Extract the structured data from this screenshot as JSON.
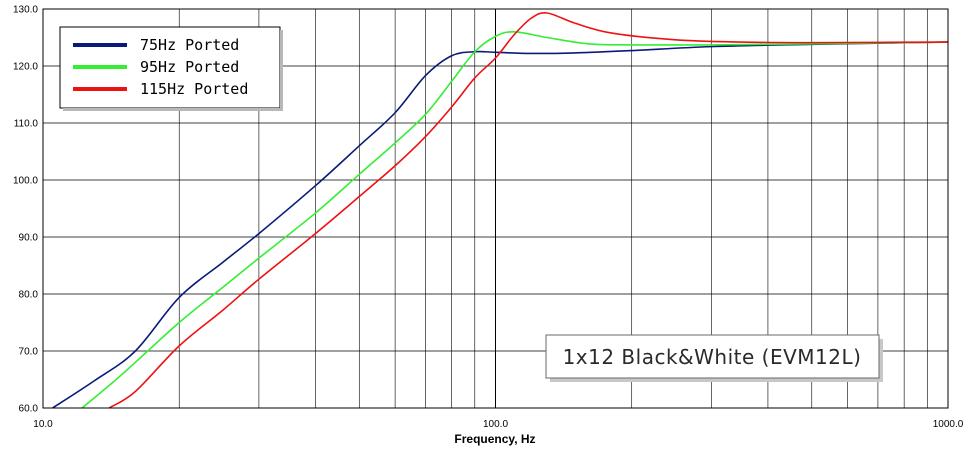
{
  "chart_data": {
    "type": "line",
    "xscale": "log",
    "xlim": [
      10.0,
      1000.0
    ],
    "ylim": [
      60.0,
      130.0
    ],
    "grid": true,
    "legend_position": "top-left",
    "xlabel": "Frequency, Hz",
    "ylabel": "",
    "x_ticks": [
      {
        "value": 10,
        "label": "10.0"
      },
      {
        "value": 100,
        "label": "100.0"
      },
      {
        "value": 1000,
        "label": "1000.0"
      }
    ],
    "y_ticks": [
      {
        "value": 60,
        "label": "60.0"
      },
      {
        "value": 70,
        "label": "70.0"
      },
      {
        "value": 80,
        "label": "80.0"
      },
      {
        "value": 90,
        "label": "90.0"
      },
      {
        "value": 100,
        "label": "100.0"
      },
      {
        "value": 110,
        "label": "110.0"
      },
      {
        "value": 120,
        "label": "120.0"
      },
      {
        "value": 130,
        "label": "130.0"
      }
    ],
    "annotation": "1x12 Black&White (EVM12L)",
    "series": [
      {
        "name": "75Hz Ported",
        "color": "#0a1a7a",
        "points": [
          [
            10.5,
            60.0
          ],
          [
            13,
            64.8
          ],
          [
            16,
            70.0
          ],
          [
            20,
            79.4
          ],
          [
            25,
            85.6
          ],
          [
            30,
            90.6
          ],
          [
            40,
            99.0
          ],
          [
            50,
            106.0
          ],
          [
            60,
            111.8
          ],
          [
            70,
            118.3
          ],
          [
            80,
            121.8
          ],
          [
            90,
            122.5
          ],
          [
            100,
            122.4
          ],
          [
            120,
            122.2
          ],
          [
            150,
            122.3
          ],
          [
            200,
            122.7
          ],
          [
            300,
            123.4
          ],
          [
            500,
            123.8
          ],
          [
            700,
            124.0
          ],
          [
            1000,
            124.2
          ]
        ]
      },
      {
        "name": "95Hz Ported",
        "color": "#33ee33",
        "points": [
          [
            12.2,
            60.0
          ],
          [
            15,
            66.0
          ],
          [
            20,
            75.0
          ],
          [
            25,
            81.2
          ],
          [
            30,
            86.3
          ],
          [
            40,
            94.2
          ],
          [
            50,
            101.0
          ],
          [
            60,
            106.5
          ],
          [
            70,
            111.5
          ],
          [
            80,
            117.3
          ],
          [
            90,
            122.5
          ],
          [
            100,
            125.2
          ],
          [
            110,
            126.0
          ],
          [
            130,
            125.0
          ],
          [
            160,
            123.9
          ],
          [
            200,
            123.7
          ],
          [
            300,
            123.7
          ],
          [
            500,
            123.9
          ],
          [
            1000,
            124.2
          ]
        ]
      },
      {
        "name": "115Hz Ported",
        "color": "#ee1111",
        "points": [
          [
            14,
            60.0
          ],
          [
            16,
            62.9
          ],
          [
            20,
            70.9
          ],
          [
            25,
            77.2
          ],
          [
            30,
            82.6
          ],
          [
            40,
            90.6
          ],
          [
            50,
            97.1
          ],
          [
            60,
            102.5
          ],
          [
            70,
            107.6
          ],
          [
            80,
            112.8
          ],
          [
            90,
            117.9
          ],
          [
            100,
            121.4
          ],
          [
            110,
            125.5
          ],
          [
            120,
            128.4
          ],
          [
            130,
            129.3
          ],
          [
            150,
            127.5
          ],
          [
            180,
            125.8
          ],
          [
            250,
            124.6
          ],
          [
            350,
            124.2
          ],
          [
            500,
            124.1
          ],
          [
            1000,
            124.2
          ]
        ]
      }
    ]
  }
}
